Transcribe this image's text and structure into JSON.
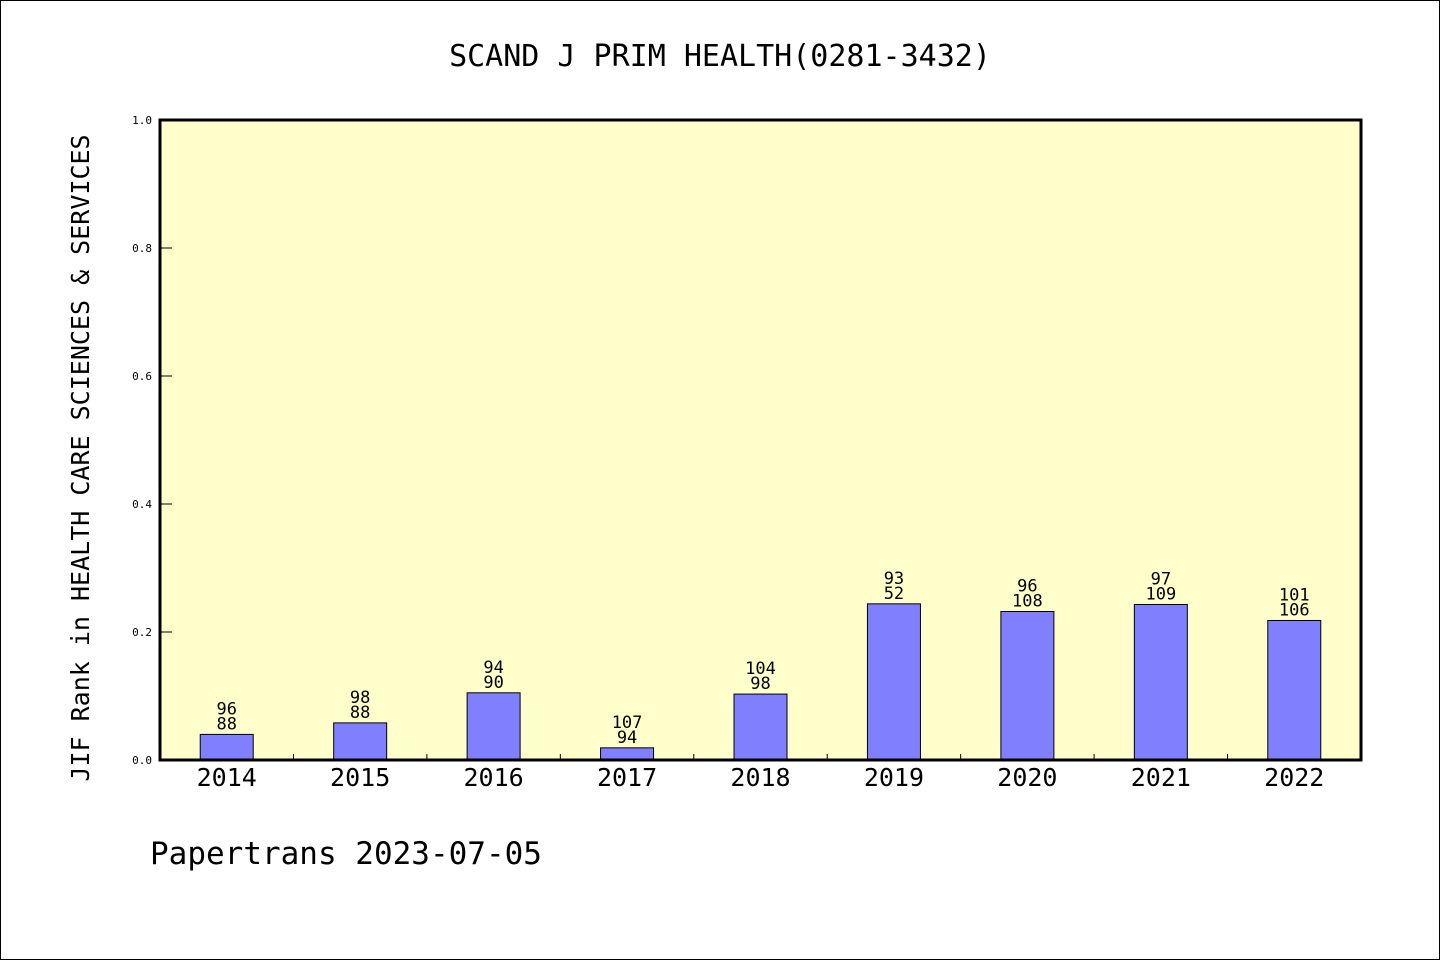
{
  "chart_data": {
    "type": "bar",
    "title": "SCAND J PRIM HEALTH(0281-3432)",
    "xlabel": "",
    "ylabel": "JIF Rank in HEALTH CARE SCIENCES & SERVICES",
    "ylim": [
      0,
      1.0
    ],
    "yticks": [
      "0.0",
      "0.2",
      "0.4",
      "0.6",
      "0.8",
      "1.0"
    ],
    "categories": [
      "2014",
      "2015",
      "2016",
      "2017",
      "2018",
      "2019",
      "2020",
      "2021",
      "2022"
    ],
    "values": [
      0.04,
      0.058,
      0.105,
      0.019,
      0.103,
      0.244,
      0.232,
      0.243,
      0.218
    ],
    "labels_top": [
      "96",
      "98",
      "94",
      "107",
      "104",
      "93",
      "96",
      "97",
      "101"
    ],
    "labels_bottom": [
      "88",
      "88",
      "90",
      "94",
      "98",
      "52",
      "108",
      "109",
      "106"
    ],
    "grid": false,
    "legend": "none"
  },
  "footer": {
    "text": "Papertrans 2023-07-05"
  },
  "colors": {
    "plot_background": "#ffffcc",
    "bar_fill": "#8080ff",
    "bar_stroke": "#000000",
    "axis": "#000000"
  }
}
